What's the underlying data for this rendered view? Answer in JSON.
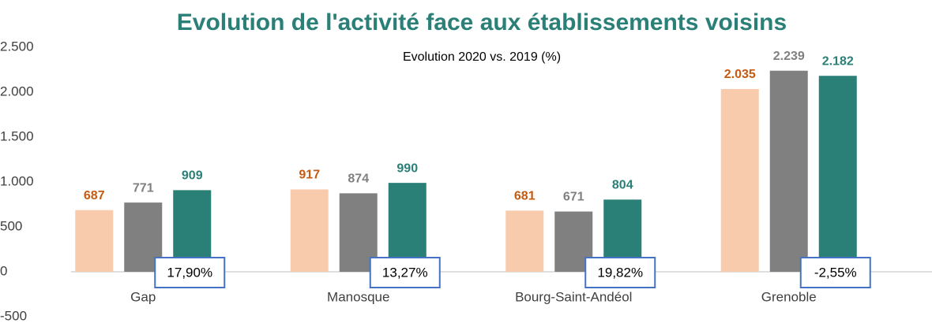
{
  "chart_data": {
    "type": "bar",
    "title": "Evolution de l'activité face aux établissements voisins",
    "subtitle": "Evolution 2020 vs. 2019 (%)",
    "categories": [
      "Gap",
      "Manosque",
      "Bourg-Saint-Andéol",
      "Grenoble"
    ],
    "series": [
      {
        "color": "#f8cbad",
        "label_color": "#c55a11",
        "values": [
          687,
          917,
          681,
          2035
        ],
        "value_labels": [
          "687",
          "917",
          "681",
          "2.035"
        ]
      },
      {
        "color": "#808080",
        "label_color": "#808080",
        "values": [
          771,
          874,
          671,
          2239
        ],
        "value_labels": [
          "771",
          "874",
          "671",
          "2.239"
        ]
      },
      {
        "color": "#2a7f77",
        "label_color": "#2a7f77",
        "values": [
          909,
          990,
          804,
          2182
        ],
        "value_labels": [
          "909",
          "990",
          "804",
          "2.182"
        ]
      }
    ],
    "annotations": [
      "17,90%",
      "13,27%",
      "19,82%",
      "-2,55%"
    ],
    "ylim": [
      -500,
      2500
    ],
    "yticks": [
      -500,
      0,
      500,
      {
        "value": 1000,
        "label": "1.000"
      },
      {
        "value": 1500,
        "label": "1.500"
      },
      {
        "value": 2000,
        "label": "2.000"
      },
      {
        "value": 2500,
        "label": "2.500"
      }
    ],
    "grid": false
  }
}
